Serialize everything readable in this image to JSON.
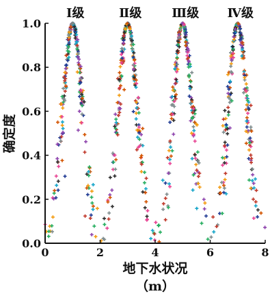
{
  "chart_data": {
    "type": "scatter",
    "title": "",
    "xlabel": "地下水状况",
    "xunit": "（m）",
    "ylabel": "确定度",
    "xlim": [
      0,
      8
    ],
    "ylim": [
      0.0,
      1.0
    ],
    "xticks": [
      "0",
      "2",
      "4",
      "6",
      "8"
    ],
    "yticks": [
      "0.0",
      "0.2",
      "0.4",
      "0.6",
      "0.8",
      "1.0"
    ],
    "grid": false,
    "legend": "none",
    "annotations": [
      {
        "text": "Ⅰ级",
        "x": 1.0,
        "y": 1.0
      },
      {
        "text": "Ⅱ级",
        "x": 3.0,
        "y": 1.0
      },
      {
        "text": "Ⅲ级",
        "x": 5.0,
        "y": 1.0
      },
      {
        "text": "Ⅳ级",
        "x": 7.0,
        "y": 1.0
      }
    ],
    "series": [
      {
        "Ex": 1.0,
        "En": 0.35,
        "He": 0.05
      },
      {
        "Ex": 3.0,
        "En": 0.35,
        "He": 0.05
      },
      {
        "Ex": 5.0,
        "En": 0.35,
        "He": 0.05
      },
      {
        "Ex": 7.0,
        "En": 0.35,
        "He": 0.05
      }
    ],
    "point_colors": [
      "#1f3a93",
      "#c0392b",
      "#27ae60",
      "#f39c12",
      "#16a5c9",
      "#8e44ad",
      "#2c2c2c",
      "#d35400",
      "#7f8c8d",
      "#e84393"
    ]
  }
}
